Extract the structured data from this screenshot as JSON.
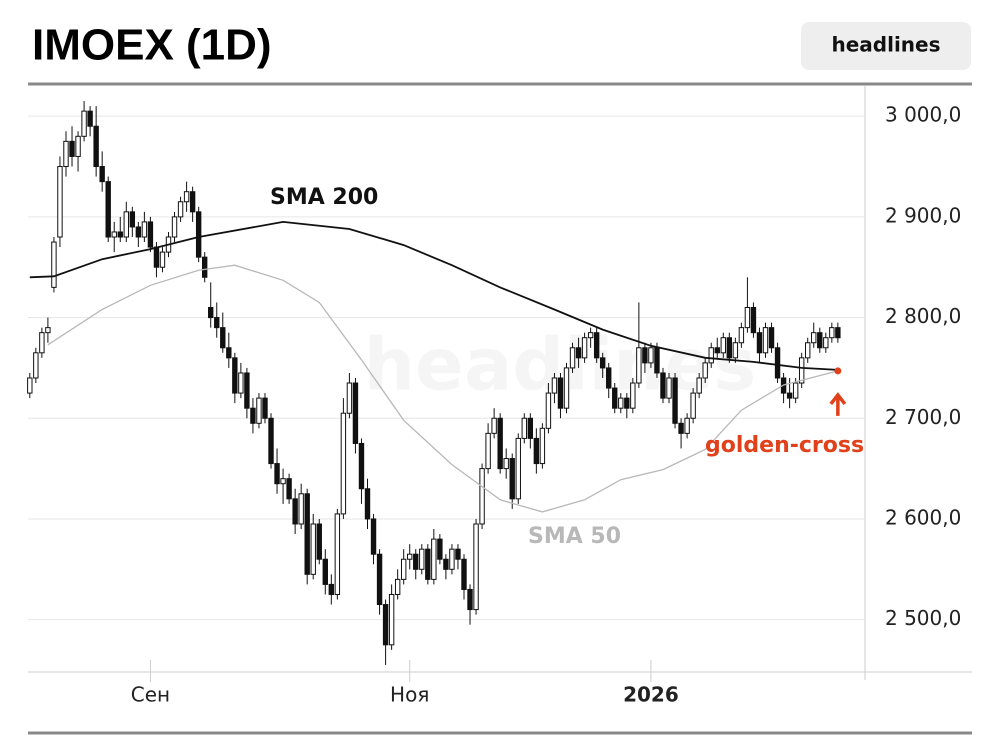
{
  "chart_data": {
    "type": "candlestick",
    "title": "IMOEX (1D)",
    "button": "headlines",
    "watermark": "headlines",
    "xlim": [
      -0.3,
      138.5
    ],
    "ylim": [
      2450,
      3025
    ],
    "xticks": [
      {
        "value": 20,
        "label": "Сен"
      },
      {
        "value": 63,
        "label": "Ноя"
      },
      {
        "value": 103,
        "label": "2026"
      }
    ],
    "yticks": [
      {
        "value": 2500,
        "label": "2 500,0"
      },
      {
        "value": 2600,
        "label": "2 600,0"
      },
      {
        "value": 2700,
        "label": "2 700,0"
      },
      {
        "value": 2800,
        "label": "2 800,0"
      },
      {
        "value": 2900,
        "label": "2 900,0"
      },
      {
        "value": 3000,
        "label": "3 000,0"
      }
    ],
    "grid": true,
    "up_color": "#ffffff",
    "down_color": "#111111",
    "ohlc": [
      [
        2725,
        2745,
        2720,
        2740
      ],
      [
        2740,
        2770,
        2735,
        2765
      ],
      [
        2765,
        2790,
        2760,
        2785
      ],
      [
        2785,
        2800,
        2775,
        2790
      ],
      [
        2830,
        2880,
        2825,
        2875
      ],
      [
        2880,
        2960,
        2870,
        2950
      ],
      [
        2950,
        2985,
        2940,
        2975
      ],
      [
        2975,
        2990,
        2950,
        2960
      ],
      [
        2960,
        2985,
        2945,
        2980
      ],
      [
        2980,
        3015,
        2975,
        3005
      ],
      [
        3005,
        3010,
        2980,
        2990
      ],
      [
        2990,
        3010,
        2940,
        2950
      ],
      [
        2950,
        2965,
        2925,
        2935
      ],
      [
        2935,
        2940,
        2875,
        2880
      ],
      [
        2880,
        2895,
        2865,
        2885
      ],
      [
        2885,
        2900,
        2875,
        2880
      ],
      [
        2880,
        2915,
        2875,
        2905
      ],
      [
        2905,
        2910,
        2880,
        2890
      ],
      [
        2890,
        2895,
        2870,
        2880
      ],
      [
        2880,
        2905,
        2875,
        2895
      ],
      [
        2895,
        2900,
        2865,
        2870
      ],
      [
        2870,
        2875,
        2840,
        2850
      ],
      [
        2850,
        2870,
        2845,
        2865
      ],
      [
        2865,
        2885,
        2860,
        2880
      ],
      [
        2880,
        2905,
        2875,
        2900
      ],
      [
        2900,
        2920,
        2895,
        2915
      ],
      [
        2915,
        2935,
        2905,
        2925
      ],
      [
        2925,
        2930,
        2895,
        2905
      ],
      [
        2905,
        2910,
        2855,
        2860
      ],
      [
        2860,
        2865,
        2835,
        2840
      ],
      [
        2810,
        2835,
        2790,
        2800
      ],
      [
        2800,
        2815,
        2780,
        2790
      ],
      [
        2790,
        2805,
        2765,
        2770
      ],
      [
        2770,
        2785,
        2750,
        2760
      ],
      [
        2760,
        2765,
        2715,
        2725
      ],
      [
        2725,
        2755,
        2720,
        2745
      ],
      [
        2745,
        2750,
        2700,
        2710
      ],
      [
        2710,
        2720,
        2685,
        2695
      ],
      [
        2695,
        2725,
        2690,
        2720
      ],
      [
        2720,
        2725,
        2695,
        2700
      ],
      [
        2700,
        2705,
        2650,
        2655
      ],
      [
        2655,
        2670,
        2625,
        2635
      ],
      [
        2635,
        2650,
        2615,
        2640
      ],
      [
        2640,
        2645,
        2615,
        2620
      ],
      [
        2620,
        2630,
        2585,
        2595
      ],
      [
        2595,
        2635,
        2590,
        2625
      ],
      [
        2625,
        2630,
        2535,
        2545
      ],
      [
        2545,
        2605,
        2540,
        2595
      ],
      [
        2595,
        2600,
        2555,
        2560
      ],
      [
        2560,
        2570,
        2525,
        2535
      ],
      [
        2535,
        2545,
        2515,
        2525
      ],
      [
        2525,
        2610,
        2520,
        2605
      ],
      [
        2605,
        2720,
        2600,
        2705
      ],
      [
        2705,
        2745,
        2700,
        2735
      ],
      [
        2735,
        2740,
        2665,
        2675
      ],
      [
        2675,
        2680,
        2615,
        2630
      ],
      [
        2630,
        2640,
        2590,
        2600
      ],
      [
        2600,
        2605,
        2555,
        2565
      ],
      [
        2565,
        2570,
        2505,
        2515
      ],
      [
        2515,
        2520,
        2455,
        2475
      ],
      [
        2475,
        2535,
        2470,
        2525
      ],
      [
        2525,
        2550,
        2520,
        2540
      ],
      [
        2540,
        2570,
        2535,
        2560
      ],
      [
        2560,
        2575,
        2550,
        2565
      ],
      [
        2565,
        2570,
        2540,
        2550
      ],
      [
        2550,
        2575,
        2545,
        2570
      ],
      [
        2570,
        2575,
        2535,
        2540
      ],
      [
        2540,
        2590,
        2535,
        2580
      ],
      [
        2580,
        2585,
        2555,
        2560
      ],
      [
        2560,
        2565,
        2540,
        2550
      ],
      [
        2550,
        2575,
        2545,
        2570
      ],
      [
        2570,
        2575,
        2550,
        2560
      ],
      [
        2560,
        2565,
        2520,
        2530
      ],
      [
        2530,
        2535,
        2495,
        2510
      ],
      [
        2510,
        2600,
        2505,
        2595
      ],
      [
        2595,
        2655,
        2590,
        2650
      ],
      [
        2650,
        2695,
        2645,
        2685
      ],
      [
        2685,
        2710,
        2680,
        2700
      ],
      [
        2700,
        2705,
        2645,
        2650
      ],
      [
        2650,
        2670,
        2640,
        2660
      ],
      [
        2660,
        2665,
        2610,
        2620
      ],
      [
        2620,
        2685,
        2615,
        2680
      ],
      [
        2680,
        2705,
        2675,
        2700
      ],
      [
        2700,
        2705,
        2670,
        2680
      ],
      [
        2680,
        2690,
        2645,
        2655
      ],
      [
        2655,
        2695,
        2650,
        2690
      ],
      [
        2690,
        2735,
        2685,
        2725
      ],
      [
        2725,
        2745,
        2715,
        2740
      ],
      [
        2740,
        2745,
        2700,
        2710
      ],
      [
        2710,
        2755,
        2705,
        2750
      ],
      [
        2750,
        2775,
        2745,
        2770
      ],
      [
        2770,
        2780,
        2750,
        2760
      ],
      [
        2760,
        2785,
        2755,
        2780
      ],
      [
        2780,
        2790,
        2770,
        2785
      ],
      [
        2785,
        2790,
        2755,
        2760
      ],
      [
        2760,
        2765,
        2740,
        2750
      ],
      [
        2750,
        2755,
        2720,
        2730
      ],
      [
        2730,
        2735,
        2705,
        2710
      ],
      [
        2710,
        2725,
        2705,
        2720
      ],
      [
        2720,
        2725,
        2700,
        2710
      ],
      [
        2710,
        2740,
        2705,
        2735
      ],
      [
        2735,
        2815,
        2730,
        2770
      ],
      [
        2770,
        2775,
        2745,
        2755
      ],
      [
        2755,
        2775,
        2750,
        2770
      ],
      [
        2770,
        2775,
        2740,
        2745
      ],
      [
        2745,
        2750,
        2715,
        2720
      ],
      [
        2720,
        2745,
        2715,
        2740
      ],
      [
        2740,
        2745,
        2690,
        2695
      ],
      [
        2695,
        2700,
        2670,
        2685
      ],
      [
        2685,
        2705,
        2680,
        2700
      ],
      [
        2700,
        2730,
        2695,
        2725
      ],
      [
        2725,
        2745,
        2720,
        2740
      ],
      [
        2740,
        2760,
        2735,
        2755
      ],
      [
        2755,
        2775,
        2750,
        2770
      ],
      [
        2770,
        2780,
        2760,
        2765
      ],
      [
        2765,
        2785,
        2760,
        2780
      ],
      [
        2780,
        2785,
        2755,
        2760
      ],
      [
        2760,
        2780,
        2755,
        2775
      ],
      [
        2775,
        2795,
        2770,
        2790
      ],
      [
        2790,
        2840,
        2785,
        2810
      ],
      [
        2810,
        2815,
        2780,
        2785
      ],
      [
        2785,
        2790,
        2755,
        2765
      ],
      [
        2765,
        2795,
        2760,
        2790
      ],
      [
        2790,
        2795,
        2765,
        2770
      ],
      [
        2770,
        2775,
        2735,
        2740
      ],
      [
        2740,
        2745,
        2715,
        2725
      ],
      [
        2725,
        2740,
        2710,
        2720
      ],
      [
        2720,
        2740,
        2715,
        2735
      ],
      [
        2735,
        2765,
        2730,
        2760
      ],
      [
        2760,
        2780,
        2755,
        2775
      ],
      [
        2775,
        2795,
        2770,
        2785
      ],
      [
        2785,
        2790,
        2765,
        2770
      ],
      [
        2770,
        2785,
        2765,
        2780
      ],
      [
        2780,
        2795,
        2775,
        2790
      ],
      [
        2790,
        2795,
        2775,
        2780
      ]
    ],
    "series": [
      {
        "name": "SMA 200",
        "color": "#111111",
        "x": [
          0,
          4,
          12,
          20,
          28,
          42,
          53,
          62,
          70,
          78,
          87,
          95,
          103,
          112,
          120,
          128,
          134
        ],
        "values": [
          2840,
          2841,
          2858,
          2868,
          2880,
          2895,
          2888,
          2872,
          2852,
          2830,
          2808,
          2788,
          2772,
          2760,
          2756,
          2750,
          2748
        ]
      },
      {
        "name": "SMA 50",
        "color": "#b8b8b8",
        "x": [
          3,
          12,
          20,
          28,
          34,
          42,
          48,
          55,
          62,
          70,
          78,
          85,
          92,
          98,
          105,
          112,
          118,
          125,
          134
        ],
        "values": [
          2773,
          2808,
          2832,
          2847,
          2852,
          2837,
          2815,
          2758,
          2698,
          2654,
          2619,
          2607,
          2619,
          2639,
          2649,
          2669,
          2708,
          2733,
          2747
        ]
      }
    ],
    "annotation": {
      "text": "golden-cross",
      "color": "#e0401a",
      "x": 134,
      "y": 2747
    }
  }
}
